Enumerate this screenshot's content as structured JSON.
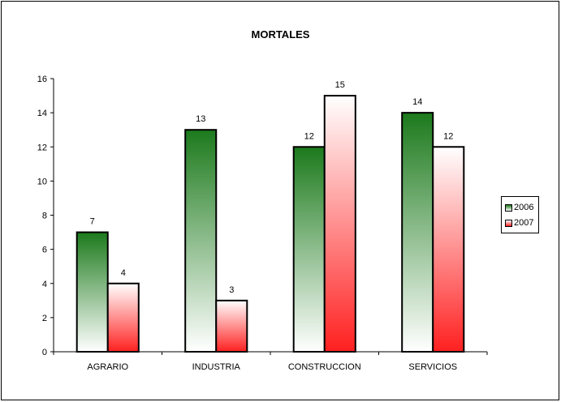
{
  "chart_data": {
    "type": "bar",
    "title": "MORTALES",
    "categories": [
      "AGRARIO",
      "INDUSTRIA",
      "CONSTRUCCION",
      "SERVICIOS"
    ],
    "series": [
      {
        "name": "2006",
        "values": [
          7,
          13,
          12,
          14
        ],
        "color_top": "#1c7a1c",
        "color_bottom": "#ffffff"
      },
      {
        "name": "2007",
        "values": [
          4,
          3,
          15,
          12
        ],
        "color_top": "#ffffff",
        "color_bottom": "#ff2020"
      }
    ],
    "ylim": [
      0,
      16
    ],
    "yticks": [
      "0",
      "2",
      "4",
      "6",
      "8",
      "10",
      "12",
      "14",
      "16"
    ],
    "grid": false,
    "legend_position": "right"
  }
}
